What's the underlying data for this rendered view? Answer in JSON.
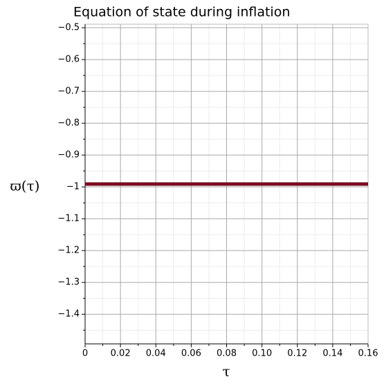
{
  "chart_data": {
    "type": "line",
    "title": "Equation of state during inflation",
    "x_label": "τ",
    "y_label": "ϖ(τ)",
    "x": [
      0,
      0.16
    ],
    "series": [
      {
        "name": "ϖ(τ)",
        "color": "#7a0a1e",
        "values": [
          -0.991,
          -0.991
        ]
      }
    ],
    "xlim": [
      0,
      0.16
    ],
    "ylim": [
      -1.493,
      -0.489
    ],
    "xticks": [
      0,
      0.02,
      0.04,
      0.06,
      0.08,
      {
        "value": 0.1,
        "label": "0.10"
      },
      0.12,
      0.14,
      0.16
    ],
    "yticks": [
      {
        "value": -0.5,
        "label": "−0.5"
      },
      {
        "value": -0.6,
        "label": "−0.6"
      },
      {
        "value": -0.7,
        "label": "−0.7"
      },
      {
        "value": -0.8,
        "label": "−0.8"
      },
      {
        "value": -0.9,
        "label": "−0.9"
      },
      {
        "value": -1,
        "label": "−1"
      },
      {
        "value": -1.1,
        "label": "−1.1"
      },
      {
        "value": -1.2,
        "label": "−1.2"
      },
      {
        "value": -1.3,
        "label": "−1.3"
      },
      {
        "value": -1.4,
        "label": "−1.4"
      }
    ],
    "xticks_minor": [
      0.01,
      0.03,
      0.05,
      0.07,
      0.09,
      0.11,
      0.13,
      0.15
    ],
    "yticks_minor": [
      -0.55,
      -0.65,
      -0.75,
      -0.85,
      -0.95,
      -1.05,
      -1.15,
      -1.25,
      -1.35,
      -1.45
    ],
    "grid": true
  }
}
